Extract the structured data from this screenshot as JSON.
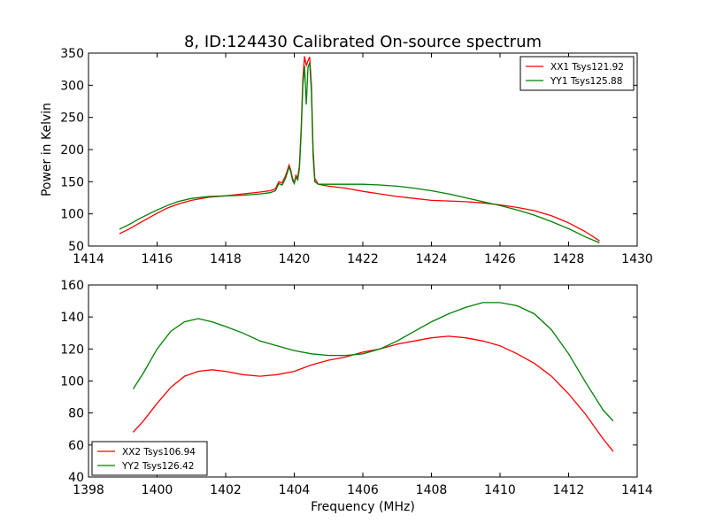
{
  "chart_data": [
    {
      "type": "line",
      "title": "8, ID:124430 Calibrated On-source spectrum",
      "xlabel": "",
      "ylabel": "Power in Kelvin",
      "xlim": [
        1414,
        1430
      ],
      "ylim": [
        50,
        350
      ],
      "x_ticks": [
        "1414",
        "1416",
        "1418",
        "1420",
        "1422",
        "1424",
        "1426",
        "1428",
        "1430"
      ],
      "y_ticks": [
        "50",
        "100",
        "150",
        "200",
        "250",
        "300",
        "350"
      ],
      "grid": false,
      "legend_position": "top-right",
      "series": [
        {
          "name": "XX1 Tsys121.92",
          "color": "#ff0000",
          "points": [
            [
              1414.9,
              69
            ],
            [
              1415.2,
              77
            ],
            [
              1415.5,
              86
            ],
            [
              1415.8,
              95
            ],
            [
              1416.0,
              101
            ],
            [
              1416.3,
              109
            ],
            [
              1416.6,
              115
            ],
            [
              1417.0,
              121
            ],
            [
              1417.5,
              126
            ],
            [
              1418.0,
              128
            ],
            [
              1418.5,
              131
            ],
            [
              1419.0,
              134
            ],
            [
              1419.3,
              136
            ],
            [
              1419.45,
              139
            ],
            [
              1419.55,
              150
            ],
            [
              1419.65,
              148
            ],
            [
              1419.75,
              160
            ],
            [
              1419.85,
              176
            ],
            [
              1419.9,
              168
            ],
            [
              1419.95,
              155
            ],
            [
              1420.0,
              149
            ],
            [
              1420.05,
              160
            ],
            [
              1420.1,
              156
            ],
            [
              1420.15,
              175
            ],
            [
              1420.2,
              232
            ],
            [
              1420.25,
              310
            ],
            [
              1420.3,
              345
            ],
            [
              1420.35,
              330
            ],
            [
              1420.4,
              338
            ],
            [
              1420.45,
              344
            ],
            [
              1420.5,
              300
            ],
            [
              1420.55,
              200
            ],
            [
              1420.6,
              155
            ],
            [
              1420.7,
              146
            ],
            [
              1421.0,
              143
            ],
            [
              1421.5,
              140
            ],
            [
              1422.0,
              135
            ],
            [
              1422.5,
              131
            ],
            [
              1423.0,
              127
            ],
            [
              1423.5,
              124
            ],
            [
              1424.0,
              121
            ],
            [
              1424.5,
              120
            ],
            [
              1425.0,
              119
            ],
            [
              1425.5,
              117
            ],
            [
              1426.0,
              114
            ],
            [
              1426.5,
              110
            ],
            [
              1427.0,
              105
            ],
            [
              1427.5,
              97
            ],
            [
              1428.0,
              86
            ],
            [
              1428.5,
              72
            ],
            [
              1428.9,
              58
            ]
          ]
        },
        {
          "name": "YY1 Tsys125.88",
          "color": "#008000",
          "points": [
            [
              1414.9,
              76
            ],
            [
              1415.2,
              84
            ],
            [
              1415.5,
              93
            ],
            [
              1415.8,
              101
            ],
            [
              1416.0,
              106
            ],
            [
              1416.3,
              113
            ],
            [
              1416.6,
              119
            ],
            [
              1417.0,
              124
            ],
            [
              1417.5,
              127
            ],
            [
              1418.0,
              128
            ],
            [
              1418.5,
              129
            ],
            [
              1419.0,
              131
            ],
            [
              1419.3,
              133
            ],
            [
              1419.45,
              136
            ],
            [
              1419.55,
              147
            ],
            [
              1419.65,
              145
            ],
            [
              1419.75,
              156
            ],
            [
              1419.85,
              173
            ],
            [
              1419.9,
              165
            ],
            [
              1419.95,
              152
            ],
            [
              1420.0,
              147
            ],
            [
              1420.05,
              157
            ],
            [
              1420.1,
              153
            ],
            [
              1420.15,
              170
            ],
            [
              1420.2,
              225
            ],
            [
              1420.25,
              300
            ],
            [
              1420.3,
              330
            ],
            [
              1420.35,
              270
            ],
            [
              1420.4,
              328
            ],
            [
              1420.45,
              335
            ],
            [
              1420.5,
              290
            ],
            [
              1420.55,
              190
            ],
            [
              1420.6,
              150
            ],
            [
              1420.7,
              146
            ],
            [
              1421.0,
              146
            ],
            [
              1421.5,
              146
            ],
            [
              1422.0,
              146
            ],
            [
              1422.5,
              145
            ],
            [
              1423.0,
              143
            ],
            [
              1423.5,
              140
            ],
            [
              1424.0,
              136
            ],
            [
              1424.5,
              131
            ],
            [
              1425.0,
              125
            ],
            [
              1425.5,
              119
            ],
            [
              1426.0,
              113
            ],
            [
              1426.5,
              106
            ],
            [
              1427.0,
              98
            ],
            [
              1427.5,
              88
            ],
            [
              1428.0,
              77
            ],
            [
              1428.5,
              64
            ],
            [
              1428.9,
              55
            ]
          ]
        }
      ]
    },
    {
      "type": "line",
      "title": "",
      "xlabel": "Frequency (MHz)",
      "ylabel": "",
      "xlim": [
        1398,
        1414
      ],
      "ylim": [
        40,
        160
      ],
      "x_ticks": [
        "1398",
        "1400",
        "1402",
        "1404",
        "1406",
        "1408",
        "1410",
        "1412",
        "1414"
      ],
      "y_ticks": [
        "40",
        "60",
        "80",
        "100",
        "120",
        "140",
        "160"
      ],
      "grid": false,
      "legend_position": "bottom-left",
      "series": [
        {
          "name": "XX2 Tsys106.94",
          "color": "#ff0000",
          "points": [
            [
              1399.3,
              68
            ],
            [
              1399.6,
              75
            ],
            [
              1400.0,
              86
            ],
            [
              1400.4,
              96
            ],
            [
              1400.8,
              103
            ],
            [
              1401.2,
              106
            ],
            [
              1401.6,
              107
            ],
            [
              1402.0,
              106
            ],
            [
              1402.5,
              104
            ],
            [
              1403.0,
              103
            ],
            [
              1403.5,
              104
            ],
            [
              1404.0,
              106
            ],
            [
              1404.5,
              110
            ],
            [
              1405.0,
              113
            ],
            [
              1405.5,
              115
            ],
            [
              1406.0,
              118
            ],
            [
              1406.5,
              120
            ],
            [
              1407.0,
              123
            ],
            [
              1407.5,
              125
            ],
            [
              1408.0,
              127
            ],
            [
              1408.5,
              128
            ],
            [
              1409.0,
              127
            ],
            [
              1409.5,
              125
            ],
            [
              1410.0,
              122
            ],
            [
              1410.5,
              117
            ],
            [
              1411.0,
              111
            ],
            [
              1411.5,
              103
            ],
            [
              1412.0,
              92
            ],
            [
              1412.5,
              79
            ],
            [
              1413.0,
              64
            ],
            [
              1413.3,
              56
            ]
          ]
        },
        {
          "name": "YY2 Tsys126.42",
          "color": "#008000",
          "points": [
            [
              1399.3,
              95
            ],
            [
              1399.6,
              105
            ],
            [
              1400.0,
              120
            ],
            [
              1400.4,
              131
            ],
            [
              1400.8,
              137
            ],
            [
              1401.2,
              139
            ],
            [
              1401.6,
              137
            ],
            [
              1402.0,
              134
            ],
            [
              1402.5,
              130
            ],
            [
              1403.0,
              125
            ],
            [
              1403.5,
              122
            ],
            [
              1404.0,
              119
            ],
            [
              1404.5,
              117
            ],
            [
              1405.0,
              116
            ],
            [
              1405.5,
              116
            ],
            [
              1406.0,
              117
            ],
            [
              1406.5,
              120
            ],
            [
              1407.0,
              125
            ],
            [
              1407.5,
              131
            ],
            [
              1408.0,
              137
            ],
            [
              1408.5,
              142
            ],
            [
              1409.0,
              146
            ],
            [
              1409.5,
              149
            ],
            [
              1410.0,
              149
            ],
            [
              1410.5,
              147
            ],
            [
              1411.0,
              142
            ],
            [
              1411.5,
              132
            ],
            [
              1412.0,
              117
            ],
            [
              1412.5,
              99
            ],
            [
              1413.0,
              82
            ],
            [
              1413.3,
              75
            ]
          ]
        }
      ]
    }
  ]
}
